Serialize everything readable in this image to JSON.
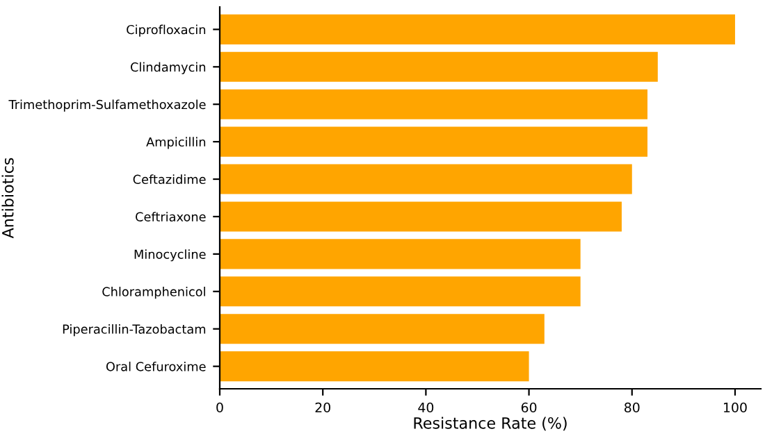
{
  "chart_data": {
    "type": "bar",
    "orientation": "horizontal",
    "xlabel": "Resistance Rate (%)",
    "ylabel": "Antibiotics",
    "categories": [
      "Ciprofloxacin",
      "Clindamycin",
      "Trimethoprim-Sulfamethoxazole",
      "Ampicillin",
      "Ceftazidime",
      "Ceftriaxone",
      "Minocycline",
      "Chloramphenicol",
      "Piperacillin-Tazobactam",
      "Oral Cefuroxime"
    ],
    "values": [
      100,
      85,
      83,
      83,
      80,
      78,
      70,
      70,
      63,
      60
    ],
    "color": "#ffa500",
    "xlim": [
      0,
      105
    ],
    "xticks": [
      0,
      20,
      40,
      60,
      80,
      100
    ],
    "grid": false
  }
}
